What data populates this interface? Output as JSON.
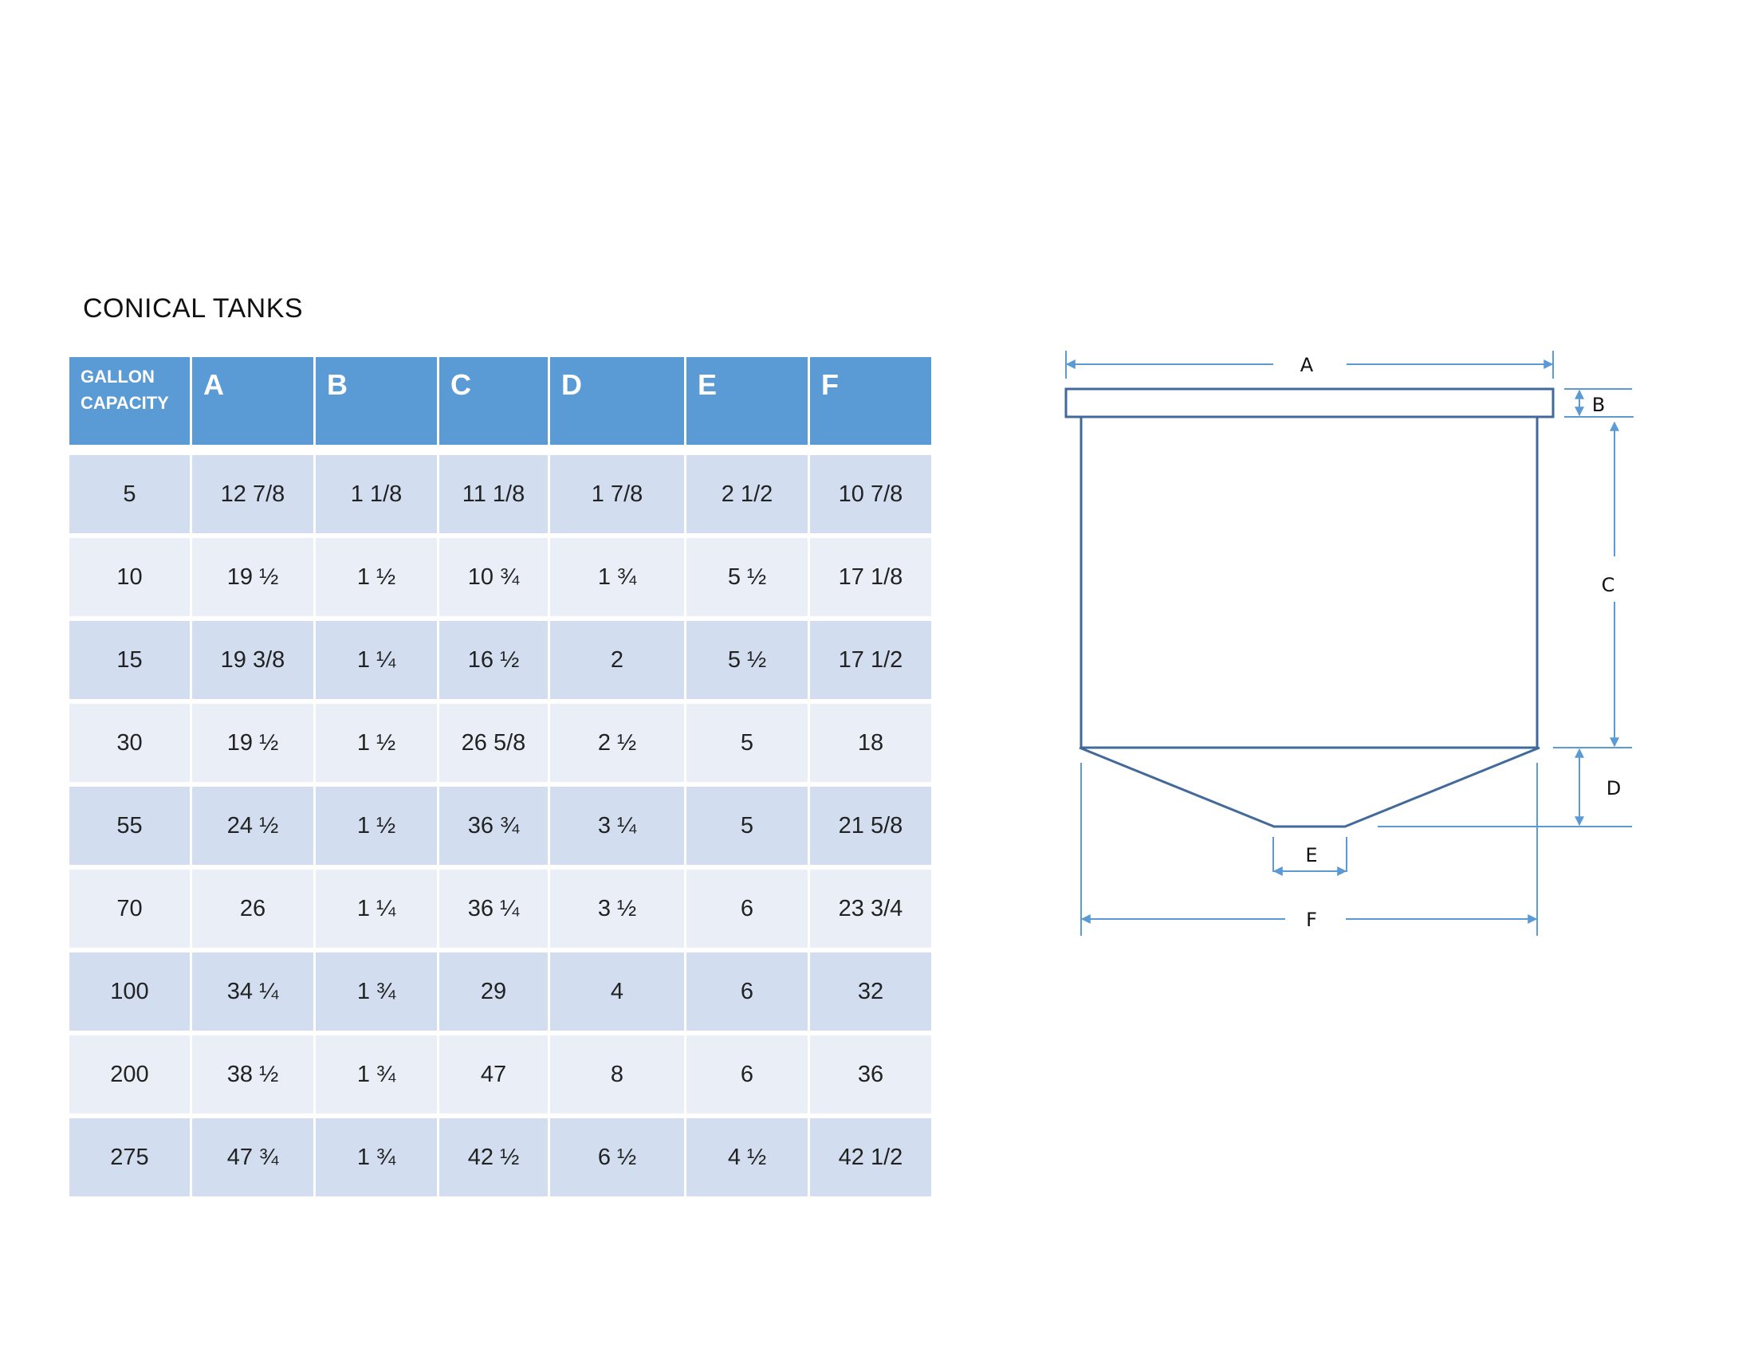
{
  "title": "CONICAL TANKS",
  "table": {
    "headers": [
      "GALLON CAPACITY",
      "A",
      "B",
      "C",
      "D",
      "E",
      "F"
    ],
    "rows": [
      [
        "5",
        "12 7/8",
        "1 1/8",
        "11 1/8",
        "1 7/8",
        "2 1/2",
        "10 7/8"
      ],
      [
        "10",
        "19 ½",
        "1 ½",
        "10 ¾",
        "1 ¾",
        "5 ½",
        "17 1/8"
      ],
      [
        "15",
        "19 3/8",
        "1 ¼",
        "16 ½",
        "2",
        "5 ½",
        "17 1/2"
      ],
      [
        "30",
        "19 ½",
        "1 ½",
        "26 5/8",
        "2 ½",
        "5",
        "18"
      ],
      [
        "55",
        "24 ½",
        "1 ½",
        "36 ¾",
        "3 ¼",
        "5",
        "21 5/8"
      ],
      [
        "70",
        "26",
        "1 ¼",
        "36 ¼",
        "3 ½",
        "6",
        "23 3/4"
      ],
      [
        "100",
        "34 ¼",
        "1 ¾",
        "29",
        "4",
        "6",
        "32"
      ],
      [
        "200",
        "38 ½",
        "1 ¾",
        "47",
        "8",
        "6",
        "36"
      ],
      [
        "275",
        "47 ¾",
        "1 ¾",
        "42 ½",
        "6 ½",
        "4 ½",
        "42 1/2"
      ]
    ]
  },
  "diagram": {
    "labels": {
      "A": "A",
      "B": "B",
      "C": "C",
      "D": "D",
      "E": "E",
      "F": "F"
    },
    "colors": {
      "outline": "#41699A",
      "dimension": "#5B9BD5",
      "header": "#5B9BD5",
      "row_odd": "#D2DEEF",
      "row_even": "#EAEFF7"
    }
  }
}
